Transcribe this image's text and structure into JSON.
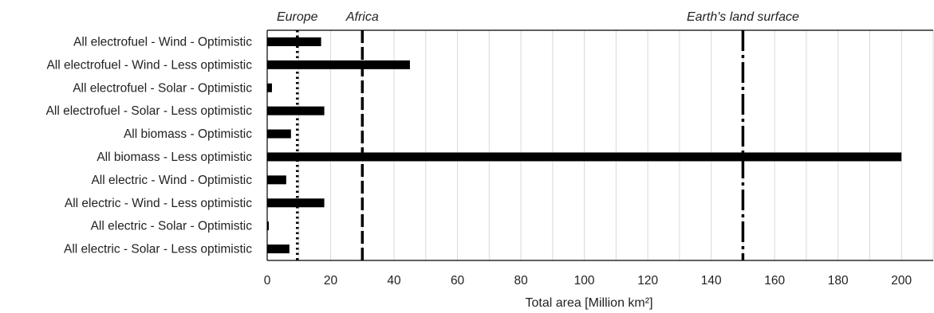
{
  "chart_data": {
    "type": "bar",
    "orientation": "horizontal",
    "categories": [
      "All electrofuel - Wind   -   Optimistic",
      "All electrofuel - Wind  -  Less optimistic",
      "All electrofuel - Solar   -   Optimistic",
      "All electrofuel - Solar  -  Less optimistic",
      "All biomass   -   Optimistic",
      "All biomass  -  Less optimistic",
      "All electric - Wind   -   Optimistic",
      "All electric - Wind  -  Less optimistic",
      "All electric - Solar   -   Optimistic",
      "All electric - Solar  -  Less optimistic"
    ],
    "values": [
      17,
      45,
      1.5,
      18,
      7.5,
      200,
      6,
      18,
      0.5,
      7
    ],
    "xlabel": "Total area [Million km²]",
    "xlim": [
      0,
      210
    ],
    "xticks": [
      "0",
      "20",
      "40",
      "60",
      "80",
      "100",
      "120",
      "140",
      "160",
      "180",
      "200"
    ],
    "grid": "vertical",
    "bar_color": "#000000",
    "reference_lines": [
      {
        "label": "Europe",
        "value": 9.5,
        "style": "dotted"
      },
      {
        "label": "Africa",
        "value": 30,
        "style": "dashed"
      },
      {
        "label": "Earth's land surface",
        "value": 150,
        "style": "dash-dot"
      }
    ]
  }
}
